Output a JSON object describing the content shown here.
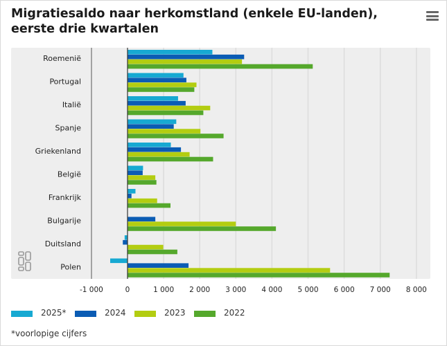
{
  "header": {
    "title": "Migratiesaldo naar herkomstland (enkele EU-landen), eerste drie kwartalen"
  },
  "colors": {
    "s2025": "#17a9d2",
    "s2024": "#0b5cb4",
    "s2023": "#b3cd11",
    "s2022": "#55a82c",
    "plot_bg": "#eeeeee",
    "grid": "#dcdcdc",
    "zero_line": "#333333"
  },
  "chart_data": {
    "type": "bar",
    "orientation": "horizontal",
    "title": "Migratiesaldo naar herkomstland (enkele EU-landen), eerste drie kwartalen",
    "xlabel": "",
    "ylabel": "",
    "xlim": [
      -1000,
      8000
    ],
    "grid": true,
    "legend_position": "bottom",
    "x_ticks": [
      -1000,
      0,
      1000,
      2000,
      3000,
      4000,
      5000,
      6000,
      7000,
      8000
    ],
    "x_tick_labels": [
      "-1 000",
      "0",
      "1 000",
      "2 000",
      "3 000",
      "4 000",
      "5 000",
      "6 000",
      "7 000",
      "8 000"
    ],
    "categories": [
      "Roemenië",
      "Portugal",
      "Italië",
      "Spanje",
      "Griekenland",
      "België",
      "Frankrijk",
      "Bulgarije",
      "Duitsland",
      "Polen"
    ],
    "series": [
      {
        "name": "2025*",
        "color_key": "s2025",
        "values": [
          2350,
          1550,
          1400,
          1350,
          1200,
          430,
          220,
          0,
          -80,
          -480
        ]
      },
      {
        "name": "2024",
        "color_key": "s2024",
        "values": [
          3230,
          1630,
          1610,
          1280,
          1480,
          420,
          110,
          770,
          -130,
          1690
        ]
      },
      {
        "name": "2023",
        "color_key": "s2023",
        "values": [
          3170,
          1910,
          2290,
          2020,
          1720,
          770,
          820,
          3000,
          990,
          5610
        ]
      },
      {
        "name": "2022",
        "color_key": "s2022",
        "values": [
          5130,
          1850,
          2100,
          2660,
          2370,
          800,
          1190,
          4110,
          1380,
          7260
        ]
      }
    ]
  },
  "footnote": "*voorlopige cijfers"
}
